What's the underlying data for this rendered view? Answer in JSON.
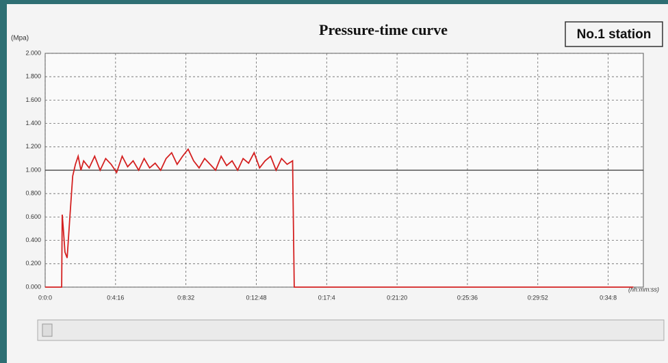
{
  "chart_data": {
    "type": "line",
    "title": "Pressure-time curve",
    "station": "No.1 station",
    "y_label": "(Mpa)",
    "x_label": "(hh:mm:ss)",
    "xlim": [
      0,
      2176
    ],
    "ylim": [
      0,
      2
    ],
    "grid": true,
    "xticks": [
      {
        "value": 0,
        "label": "0:0:0"
      },
      {
        "value": 256,
        "label": "0:4:16"
      },
      {
        "value": 512,
        "label": "0:8:32"
      },
      {
        "value": 768,
        "label": "0:12:48"
      },
      {
        "value": 1024,
        "label": "0:17:4"
      },
      {
        "value": 1280,
        "label": "0:21:20"
      },
      {
        "value": 1536,
        "label": "0:25:36"
      },
      {
        "value": 1792,
        "label": "0:29:52"
      },
      {
        "value": 2048,
        "label": "0:34:8"
      }
    ],
    "yticks": [
      {
        "value": 0,
        "label": "0.000"
      },
      {
        "value": 0.2,
        "label": "0.200"
      },
      {
        "value": 0.4,
        "label": "0.400"
      },
      {
        "value": 0.6,
        "label": "0.600"
      },
      {
        "value": 0.8,
        "label": "0.800"
      },
      {
        "value": 1,
        "label": "1.000"
      },
      {
        "value": 1.2,
        "label": "1.200"
      },
      {
        "value": 1.4,
        "label": "1.400"
      },
      {
        "value": 1.6,
        "label": "1.600"
      },
      {
        "value": 1.8,
        "label": "1.800"
      },
      {
        "value": 2,
        "label": "2.000"
      }
    ],
    "hlines": [
      {
        "value": 1,
        "color": "#333333"
      }
    ],
    "x": [
      0,
      60,
      62,
      66,
      72,
      80,
      90,
      100,
      110,
      120,
      130,
      140,
      160,
      180,
      200,
      220,
      240,
      260,
      280,
      300,
      320,
      340,
      360,
      380,
      400,
      420,
      440,
      460,
      480,
      500,
      520,
      540,
      560,
      580,
      600,
      620,
      640,
      660,
      680,
      700,
      720,
      740,
      760,
      780,
      800,
      820,
      840,
      860,
      880,
      900,
      906,
      2140
    ],
    "series": [
      {
        "color": "#d42020",
        "values": [
          0,
          0,
          0.62,
          0.5,
          0.3,
          0.25,
          0.6,
          0.95,
          1.05,
          1.12,
          1.0,
          1.08,
          1.02,
          1.12,
          1.0,
          1.1,
          1.05,
          0.98,
          1.12,
          1.03,
          1.08,
          1.0,
          1.1,
          1.02,
          1.06,
          1.0,
          1.1,
          1.15,
          1.05,
          1.12,
          1.18,
          1.08,
          1.02,
          1.1,
          1.05,
          1.0,
          1.12,
          1.04,
          1.08,
          1.0,
          1.1,
          1.06,
          1.15,
          1.02,
          1.08,
          1.12,
          1.0,
          1.1,
          1.05,
          1.08,
          0,
          0
        ]
      }
    ]
  }
}
